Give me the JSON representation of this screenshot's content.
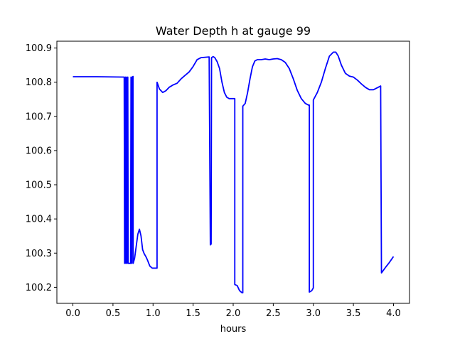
{
  "chart_data": {
    "type": "line",
    "title": "Water Depth h at gauge 99",
    "xlabel": "hours",
    "ylabel": "",
    "xlim": [
      -0.2,
      4.2
    ],
    "ylim": [
      100.153,
      100.92
    ],
    "grid": false,
    "xticks": [
      0.0,
      0.5,
      1.0,
      1.5,
      2.0,
      2.5,
      3.0,
      3.5,
      4.0
    ],
    "xtick_labels": [
      "0.0",
      "0.5",
      "1.0",
      "1.5",
      "2.0",
      "2.5",
      "3.0",
      "3.5",
      "4.0"
    ],
    "yticks": [
      100.2,
      100.3,
      100.4,
      100.5,
      100.6,
      100.7,
      100.8,
      100.9
    ],
    "ytick_labels": [
      "100.2",
      "100.3",
      "100.4",
      "100.5",
      "100.6",
      "100.7",
      "100.8",
      "100.9"
    ],
    "series": [
      {
        "color": "#0000ff",
        "x": [
          0.0,
          0.3,
          0.64,
          0.645,
          0.655,
          0.66,
          0.67,
          0.675,
          0.685,
          0.69,
          0.72,
          0.725,
          0.735,
          0.74,
          0.75,
          0.752,
          0.77,
          0.79,
          0.81,
          0.83,
          0.85,
          0.87,
          0.89,
          0.91,
          0.93,
          0.96,
          0.99,
          1.02,
          1.05,
          1.05,
          1.08,
          1.12,
          1.16,
          1.2,
          1.25,
          1.3,
          1.35,
          1.4,
          1.45,
          1.5,
          1.55,
          1.6,
          1.65,
          1.7,
          1.715,
          1.715,
          1.725,
          1.73,
          1.75,
          1.77,
          1.8,
          1.83,
          1.86,
          1.89,
          1.92,
          1.95,
          1.98,
          2.0,
          2.02,
          2.02,
          2.05,
          2.08,
          2.11,
          2.12,
          2.12,
          2.15,
          2.18,
          2.21,
          2.24,
          2.27,
          2.3,
          2.35,
          2.4,
          2.45,
          2.5,
          2.55,
          2.6,
          2.65,
          2.7,
          2.75,
          2.8,
          2.85,
          2.9,
          2.94,
          2.95,
          2.95,
          2.98,
          3.0,
          3.0,
          3.05,
          3.1,
          3.15,
          3.2,
          3.25,
          3.28,
          3.31,
          3.35,
          3.4,
          3.45,
          3.5,
          3.55,
          3.6,
          3.65,
          3.7,
          3.75,
          3.8,
          3.84,
          3.84,
          3.85,
          3.85,
          3.9,
          3.95,
          4.0
        ],
        "y": [
          100.816,
          100.816,
          100.815,
          100.27,
          100.815,
          100.27,
          100.815,
          100.27,
          100.815,
          100.27,
          100.27,
          100.815,
          100.27,
          100.815,
          100.817,
          100.27,
          100.285,
          100.32,
          100.355,
          100.37,
          100.35,
          100.31,
          100.298,
          100.29,
          100.28,
          100.262,
          100.256,
          100.256,
          100.256,
          100.8,
          100.78,
          100.77,
          100.775,
          100.785,
          100.792,
          100.797,
          100.81,
          100.82,
          100.83,
          100.846,
          100.866,
          100.872,
          100.873,
          100.874,
          100.324,
          100.326,
          100.326,
          100.872,
          100.875,
          100.872,
          100.86,
          100.84,
          100.8,
          100.77,
          100.756,
          100.752,
          100.752,
          100.752,
          100.752,
          100.208,
          100.205,
          100.19,
          100.184,
          100.184,
          100.73,
          100.738,
          100.77,
          100.81,
          100.845,
          100.862,
          100.866,
          100.866,
          100.868,
          100.866,
          100.868,
          100.869,
          100.866,
          100.858,
          100.84,
          100.81,
          100.776,
          100.752,
          100.738,
          100.733,
          100.733,
          100.186,
          100.19,
          100.198,
          100.748,
          100.77,
          100.8,
          100.84,
          100.876,
          100.888,
          100.888,
          100.877,
          100.85,
          100.826,
          100.818,
          100.815,
          100.806,
          100.795,
          100.785,
          100.778,
          100.778,
          100.784,
          100.789,
          100.789,
          100.242,
          100.242,
          100.258,
          100.273,
          100.29
        ]
      }
    ]
  }
}
